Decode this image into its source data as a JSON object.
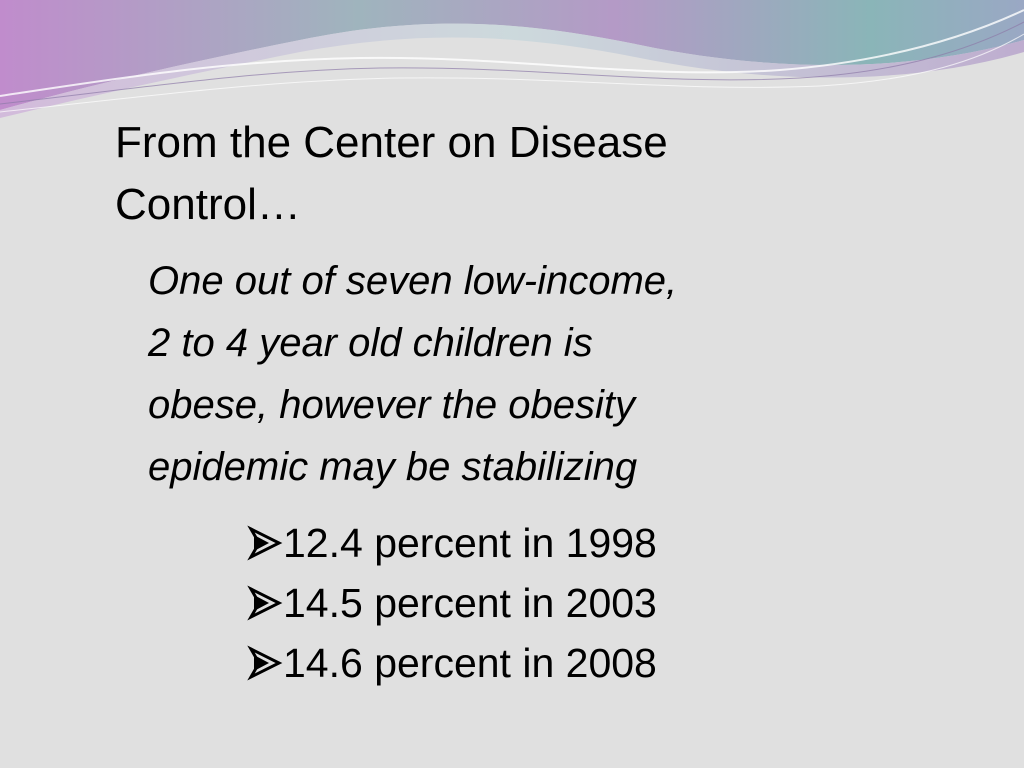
{
  "slide": {
    "heading_line1": "From the Center on Disease",
    "heading_line2": "Control…",
    "quote_lines": [
      "One out of seven low-income,",
      "2 to 4 year old children is",
      "obese, however the obesity",
      "epidemic may be stabilizing"
    ],
    "stats": [
      {
        "text": "12.4 percent in 1998"
      },
      {
        "text": "14.5 percent in 2003"
      },
      {
        "text": "14.6 percent in 2008"
      }
    ],
    "bullet_icon": "arrow-bullet-icon"
  },
  "colors": {
    "background": "#e0e0e0",
    "wave_purple": "#b890c8",
    "wave_teal": "#7fb0b5",
    "text": "#000000"
  }
}
